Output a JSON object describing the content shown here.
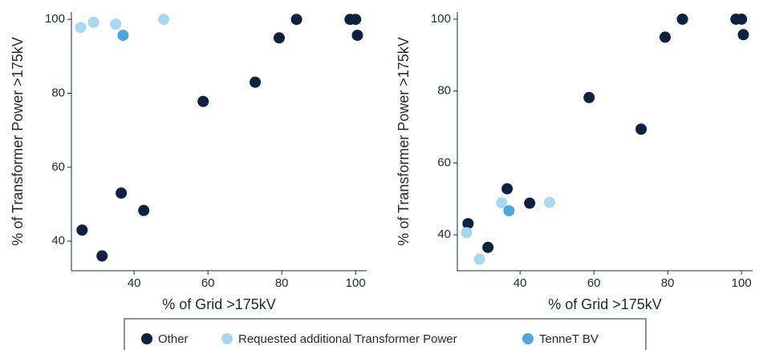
{
  "chart_data": [
    {
      "type": "scatter",
      "x_label": "% of Grid >175kV",
      "y_label": "% of Transformer Power >175kV",
      "xlim": [
        23,
        103
      ],
      "ylim": [
        32,
        102
      ],
      "xticks": [
        40,
        60,
        80,
        100
      ],
      "yticks": [
        40,
        60,
        80,
        100
      ],
      "series": [
        {
          "name": "Other",
          "color": "#0d2240",
          "x": [
            25.9,
            31.3,
            36.5,
            42.6,
            58.7,
            72.8,
            79.3,
            84,
            98.5,
            100,
            100.5
          ],
          "values": [
            43,
            36,
            53,
            48.3,
            77.8,
            83,
            95,
            100,
            100,
            100,
            95.7
          ]
        },
        {
          "name": "Requested additional Transformer Power",
          "color": "#a8d8f0",
          "x": [
            25.5,
            29,
            35,
            48
          ],
          "values": [
            97.8,
            99.2,
            98.7,
            100
          ]
        },
        {
          "name": "TenneT BV",
          "color": "#4aa8de",
          "x": [
            37
          ],
          "values": [
            95.7
          ]
        }
      ]
    },
    {
      "type": "scatter",
      "x_label": "% of Grid >175kV",
      "y_label": "% of Transformer Power >175kV",
      "xlim": [
        23,
        103
      ],
      "ylim": [
        30,
        102
      ],
      "xticks": [
        40,
        60,
        80,
        100
      ],
      "yticks": [
        40,
        60,
        80,
        100
      ],
      "series": [
        {
          "name": "Other",
          "color": "#0d2240",
          "x": [
            25.9,
            31.3,
            36.5,
            42.6,
            58.7,
            72.8,
            79.3,
            84,
            98.5,
            100,
            100.5
          ],
          "values": [
            43.1,
            36.5,
            52.8,
            48.8,
            78.2,
            69.4,
            95,
            100,
            100,
            100,
            95.7
          ]
        },
        {
          "name": "Requested additional Transformer Power",
          "color": "#a8d8f0",
          "x": [
            25.5,
            29,
            35,
            48
          ],
          "values": [
            40.6,
            33.2,
            48.9,
            49
          ]
        },
        {
          "name": "TenneT BV",
          "color": "#4aa8de",
          "x": [
            37
          ],
          "values": [
            46.7
          ]
        }
      ]
    }
  ]
}
